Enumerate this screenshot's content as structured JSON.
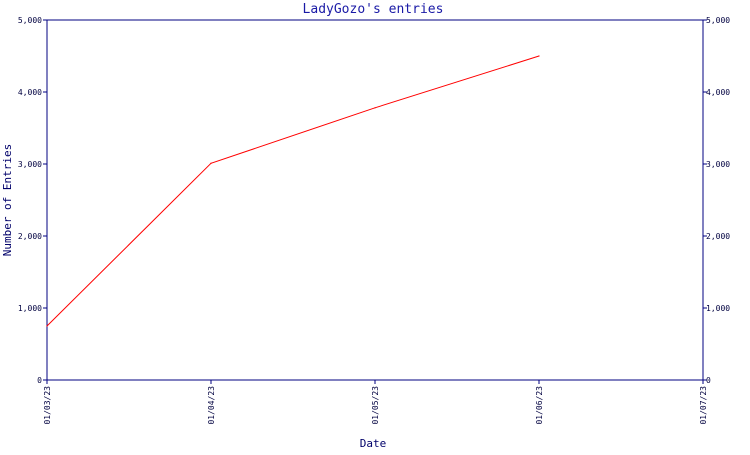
{
  "chart_data": {
    "type": "line",
    "title": "LadyGozo's entries",
    "xlabel": "Date",
    "ylabel": "Number of Entries",
    "x_tick_labels": [
      "01/03/23",
      "01/04/23",
      "01/05/23",
      "01/06/23",
      "01/07/23"
    ],
    "y_tick_labels": [
      "0",
      "1,000",
      "2,000",
      "3,000",
      "4,000",
      "5,000"
    ],
    "ylim": [
      0,
      5000
    ],
    "xlim": [
      "01/03/23",
      "01/07/23"
    ],
    "grid": false,
    "series": [
      {
        "x": [
          "01/03/23",
          "01/04/23",
          "01/05/23",
          "01/06/23"
        ],
        "values": [
          750,
          3010,
          3780,
          4500
        ],
        "color": "#ff0000"
      }
    ],
    "colors": {
      "frame": "#000080",
      "line": "#ff0000",
      "title": "#1a1aa6"
    }
  }
}
